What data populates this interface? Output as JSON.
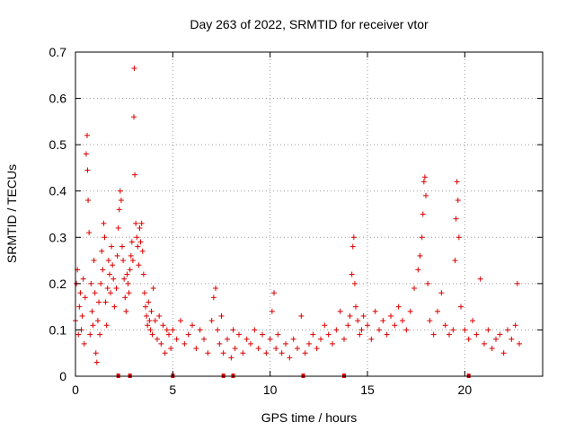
{
  "chart_data": {
    "type": "scatter",
    "title": "Day 263 of 2022, SRMTID for receiver vtor",
    "xlabel": "GPS time / hours",
    "ylabel": "SRMTID / TECUs",
    "xlim": [
      0,
      24
    ],
    "ylim": [
      0,
      0.7
    ],
    "xticks": [
      0,
      5,
      10,
      15,
      20
    ],
    "xtick_labels": [
      "0",
      "5",
      "10",
      "15",
      "20"
    ],
    "yticks": [
      0,
      0.1,
      0.2,
      0.3,
      0.4,
      0.5,
      0.6,
      0.7
    ],
    "ytick_labels": [
      "0",
      "0.1",
      "0.2",
      "0.3",
      "0.4",
      "0.5",
      "0.6",
      "0.7"
    ],
    "grid": true,
    "marker": "+",
    "color": "#dd0000",
    "series": [
      {
        "name": "SRMTID",
        "points": [
          [
            0.0,
            0.12
          ],
          [
            0.05,
            0.2
          ],
          [
            0.1,
            0.23
          ],
          [
            0.15,
            0.09
          ],
          [
            0.2,
            0.15
          ],
          [
            0.25,
            0.18
          ],
          [
            0.3,
            0.1
          ],
          [
            0.35,
            0.13
          ],
          [
            0.4,
            0.21
          ],
          [
            0.45,
            0.07
          ],
          [
            0.5,
            0.17
          ],
          [
            0.55,
            0.48
          ],
          [
            0.6,
            0.52
          ],
          [
            0.62,
            0.445
          ],
          [
            0.65,
            0.38
          ],
          [
            0.7,
            0.31
          ],
          [
            0.75,
            0.09
          ],
          [
            0.8,
            0.2
          ],
          [
            0.85,
            0.14
          ],
          [
            0.9,
            0.11
          ],
          [
            0.95,
            0.25
          ],
          [
            1.0,
            0.18
          ],
          [
            1.05,
            0.05
          ],
          [
            1.1,
            0.03
          ],
          [
            1.15,
            0.12
          ],
          [
            1.2,
            0.16
          ],
          [
            1.25,
            0.09
          ],
          [
            1.3,
            0.2
          ],
          [
            1.35,
            0.27
          ],
          [
            1.4,
            0.23
          ],
          [
            1.45,
            0.33
          ],
          [
            1.5,
            0.3
          ],
          [
            1.55,
            0.16
          ],
          [
            1.6,
            0.11
          ],
          [
            1.65,
            0.19
          ],
          [
            1.7,
            0.25
          ],
          [
            1.75,
            0.22
          ],
          [
            1.8,
            0.18
          ],
          [
            1.85,
            0.28
          ],
          [
            1.9,
            0.24
          ],
          [
            1.95,
            0.21
          ],
          [
            2.0,
            0.15
          ],
          [
            2.1,
            0.19
          ],
          [
            2.15,
            0.26
          ],
          [
            2.2,
            0.32
          ],
          [
            2.25,
            0.36
          ],
          [
            2.3,
            0.4
          ],
          [
            2.35,
            0.38
          ],
          [
            2.4,
            0.28
          ],
          [
            2.45,
            0.25
          ],
          [
            2.5,
            0.21
          ],
          [
            2.55,
            0.17
          ],
          [
            2.6,
            0.14
          ],
          [
            2.65,
            0.22
          ],
          [
            2.7,
            0.2
          ],
          [
            2.75,
            0.18
          ],
          [
            2.8,
            0.23
          ],
          [
            2.85,
            0.26
          ],
          [
            2.9,
            0.29
          ],
          [
            2.95,
            0.25
          ],
          [
            3.0,
            0.56
          ],
          [
            3.02,
            0.665
          ],
          [
            3.05,
            0.435
          ],
          [
            3.1,
            0.33
          ],
          [
            3.15,
            0.3
          ],
          [
            3.2,
            0.28
          ],
          [
            3.25,
            0.24
          ],
          [
            3.3,
            0.32
          ],
          [
            3.35,
            0.29
          ],
          [
            3.4,
            0.33
          ],
          [
            3.45,
            0.27
          ],
          [
            3.5,
            0.22
          ],
          [
            3.55,
            0.18
          ],
          [
            3.6,
            0.15
          ],
          [
            3.65,
            0.13
          ],
          [
            3.7,
            0.11
          ],
          [
            3.75,
            0.16
          ],
          [
            3.8,
            0.12
          ],
          [
            3.85,
            0.1
          ],
          [
            3.9,
            0.14
          ],
          [
            3.95,
            0.09
          ],
          [
            4.0,
            0.19
          ],
          [
            4.1,
            0.12
          ],
          [
            4.2,
            0.08
          ],
          [
            4.3,
            0.13
          ],
          [
            4.4,
            0.07
          ],
          [
            4.5,
            0.11
          ],
          [
            4.6,
            0.05
          ],
          [
            4.7,
            0.1
          ],
          [
            4.8,
            0.09
          ],
          [
            4.9,
            0.06
          ],
          [
            5.0,
            0.1
          ],
          [
            5.2,
            0.08
          ],
          [
            5.4,
            0.12
          ],
          [
            5.6,
            0.07
          ],
          [
            5.8,
            0.09
          ],
          [
            6.0,
            0.11
          ],
          [
            6.2,
            0.06
          ],
          [
            6.4,
            0.1
          ],
          [
            6.6,
            0.08
          ],
          [
            6.8,
            0.05
          ],
          [
            7.0,
            0.12
          ],
          [
            7.1,
            0.17
          ],
          [
            7.2,
            0.19
          ],
          [
            7.3,
            0.1
          ],
          [
            7.4,
            0.07
          ],
          [
            7.5,
            0.13
          ],
          [
            7.6,
            0.05
          ],
          [
            7.8,
            0.08
          ],
          [
            8.0,
            0.04
          ],
          [
            8.1,
            0.1
          ],
          [
            8.2,
            0.06
          ],
          [
            8.4,
            0.09
          ],
          [
            8.6,
            0.05
          ],
          [
            8.8,
            0.08
          ],
          [
            9.0,
            0.07
          ],
          [
            9.2,
            0.1
          ],
          [
            9.4,
            0.06
          ],
          [
            9.6,
            0.09
          ],
          [
            9.8,
            0.05
          ],
          [
            10.0,
            0.08
          ],
          [
            10.1,
            0.14
          ],
          [
            10.2,
            0.18
          ],
          [
            10.3,
            0.06
          ],
          [
            10.4,
            0.09
          ],
          [
            10.6,
            0.05
          ],
          [
            10.8,
            0.07
          ],
          [
            11.0,
            0.04
          ],
          [
            11.2,
            0.08
          ],
          [
            11.4,
            0.06
          ],
          [
            11.6,
            0.13
          ],
          [
            11.8,
            0.05
          ],
          [
            12.0,
            0.07
          ],
          [
            12.2,
            0.09
          ],
          [
            12.4,
            0.06
          ],
          [
            12.6,
            0.08
          ],
          [
            12.8,
            0.11
          ],
          [
            13.0,
            0.09
          ],
          [
            13.2,
            0.07
          ],
          [
            13.4,
            0.1
          ],
          [
            13.6,
            0.14
          ],
          [
            13.8,
            0.08
          ],
          [
            14.0,
            0.11
          ],
          [
            14.1,
            0.13
          ],
          [
            14.2,
            0.22
          ],
          [
            14.25,
            0.28
          ],
          [
            14.3,
            0.3
          ],
          [
            14.35,
            0.2
          ],
          [
            14.4,
            0.15
          ],
          [
            14.5,
            0.12
          ],
          [
            14.6,
            0.09
          ],
          [
            14.7,
            0.1
          ],
          [
            14.8,
            0.13
          ],
          [
            15.0,
            0.11
          ],
          [
            15.2,
            0.08
          ],
          [
            15.4,
            0.14
          ],
          [
            15.6,
            0.1
          ],
          [
            15.8,
            0.12
          ],
          [
            16.0,
            0.09
          ],
          [
            16.2,
            0.13
          ],
          [
            16.4,
            0.11
          ],
          [
            16.6,
            0.15
          ],
          [
            16.8,
            0.12
          ],
          [
            17.0,
            0.1
          ],
          [
            17.2,
            0.14
          ],
          [
            17.4,
            0.19
          ],
          [
            17.6,
            0.23
          ],
          [
            17.7,
            0.26
          ],
          [
            17.8,
            0.3
          ],
          [
            17.85,
            0.35
          ],
          [
            17.9,
            0.42
          ],
          [
            17.95,
            0.43
          ],
          [
            18.0,
            0.39
          ],
          [
            18.1,
            0.2
          ],
          [
            18.2,
            0.12
          ],
          [
            18.4,
            0.09
          ],
          [
            18.6,
            0.14
          ],
          [
            18.8,
            0.18
          ],
          [
            19.0,
            0.11
          ],
          [
            19.2,
            0.09
          ],
          [
            19.4,
            0.1
          ],
          [
            19.5,
            0.25
          ],
          [
            19.55,
            0.34
          ],
          [
            19.6,
            0.42
          ],
          [
            19.65,
            0.38
          ],
          [
            19.7,
            0.3
          ],
          [
            19.8,
            0.15
          ],
          [
            20.0,
            0.1
          ],
          [
            20.2,
            0.08
          ],
          [
            20.4,
            0.12
          ],
          [
            20.6,
            0.09
          ],
          [
            20.8,
            0.21
          ],
          [
            21.0,
            0.07
          ],
          [
            21.2,
            0.1
          ],
          [
            21.4,
            0.06
          ],
          [
            21.6,
            0.08
          ],
          [
            21.8,
            0.09
          ],
          [
            22.0,
            0.05
          ],
          [
            22.2,
            0.1
          ],
          [
            22.4,
            0.08
          ],
          [
            22.6,
            0.11
          ],
          [
            22.7,
            0.2
          ],
          [
            22.8,
            0.07
          ]
        ]
      }
    ],
    "gaps_on_axis": [
      2.2,
      2.8,
      5.0,
      7.6,
      8.1,
      11.7,
      13.8,
      20.2
    ]
  }
}
